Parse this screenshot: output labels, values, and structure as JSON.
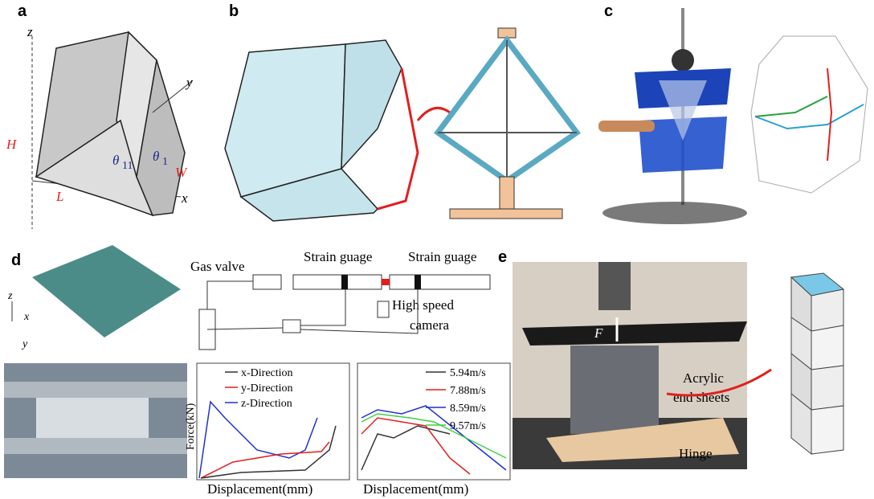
{
  "panel_a": {
    "label": "a",
    "axis_z": "z",
    "axis_y": "y",
    "axis_x": "x",
    "dim_h": "H",
    "dim_l": "L",
    "dim_w": "W",
    "theta": "θ",
    "sub_11": "11",
    "sub_1": "1"
  },
  "panel_b": {
    "label": "b"
  },
  "panel_c": {
    "label": "c"
  },
  "panel_d": {
    "label": "d",
    "axis_z": "z",
    "axis_x": "x",
    "axis_y": "y",
    "gas_valve": "Gas valve",
    "strain_gauge_1": "Strain guage",
    "strain_gauge_2": "Strain guage",
    "camera_line1": "High speed",
    "camera_line2": "camera",
    "plot1": {
      "y_label": "Force(kN)",
      "x_label": "Displacement(mm)",
      "legend": [
        "x-Direction",
        "y-Direction",
        "z-Direction"
      ]
    },
    "plot2": {
      "x_label": "Displacement(mm)",
      "legend": [
        "5.94m/s",
        "7.88m/s",
        "8.59m/s",
        "9.57m/s"
      ]
    }
  },
  "panel_e": {
    "label": "e",
    "force": "F",
    "acrylic_line1": "Acrylic",
    "acrylic_line2": "end sheets",
    "hinge": "Hinge"
  }
}
